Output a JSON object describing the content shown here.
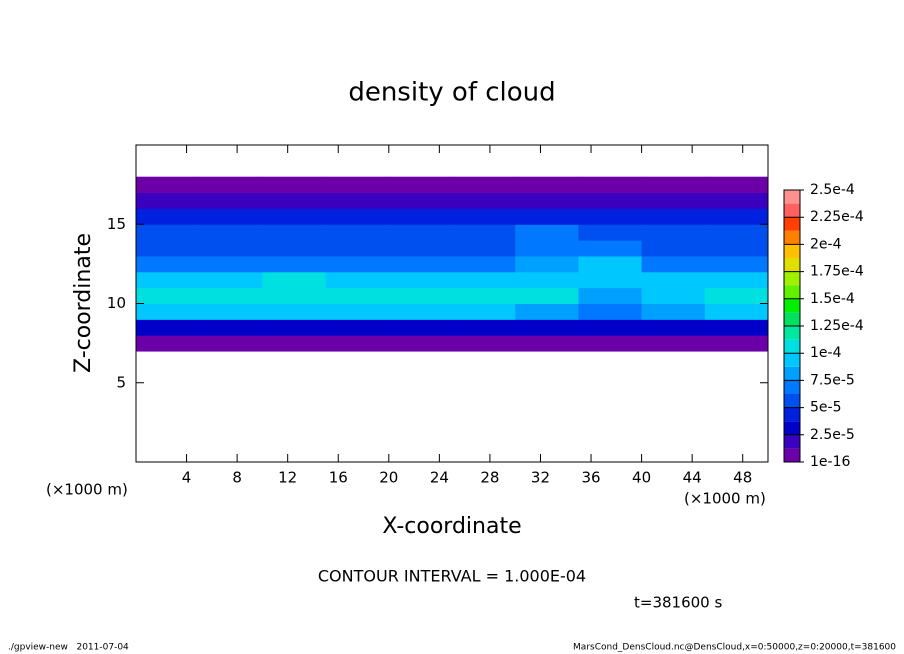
{
  "chart_data": {
    "type": "heatmap",
    "title": "density of cloud",
    "x_label": "X-coordinate",
    "y_label": "Z-coordinate",
    "x_unit_label": "(×1000 m)",
    "y_unit_label": "(×1000 m)",
    "annotation": "CONTOUR INTERVAL = 1.000E-04",
    "time_label": "t=381600 s",
    "footer_left": "./gpview-new   2011-07-04",
    "footer_right": "MarsCond_DensCloud.nc@DensCloud,x=0:50000,z=0:20000,t=381600",
    "xlim": [
      0,
      50
    ],
    "xticks": [
      4,
      8,
      12,
      16,
      20,
      24,
      28,
      32,
      36,
      40,
      44,
      48
    ],
    "ylim": [
      0,
      20
    ],
    "yticks": [
      5,
      10,
      15
    ],
    "x": [
      2.5,
      7.5,
      12.5,
      17.5,
      22.5,
      27.5,
      32.5,
      37.5,
      42.5,
      47.5
    ],
    "z": [
      7.5,
      8.5,
      9.5,
      10.5,
      11.5,
      12.5,
      13.5,
      14.5,
      15.5,
      16.5,
      17.5
    ],
    "values": [
      [
        3e-06,
        3e-06,
        3e-06,
        3e-06,
        3e-06,
        3e-06,
        3e-06,
        3e-06,
        3e-06,
        3e-06
      ],
      [
        3e-05,
        3e-05,
        3e-05,
        3e-05,
        3e-05,
        3e-05,
        3e-05,
        3e-05,
        3e-05,
        3e-05
      ],
      [
        9e-05,
        9e-05,
        9.5e-05,
        9e-05,
        9e-05,
        9e-05,
        8e-05,
        7e-05,
        8e-05,
        9e-05
      ],
      [
        0.00011,
        0.00011,
        0.000112,
        0.00011,
        0.00011,
        0.00011,
        0.000105,
        8e-05,
        0.0001,
        0.000105
      ],
      [
        0.0001,
        0.0001,
        0.000105,
        0.0001,
        0.0001,
        9.5e-05,
        9e-05,
        0.0001,
        9e-05,
        9e-05
      ],
      [
        7e-05,
        7e-05,
        7e-05,
        6.5e-05,
        6.5e-05,
        6.5e-05,
        8e-05,
        9e-05,
        7e-05,
        7e-05
      ],
      [
        6e-05,
        6e-05,
        6e-05,
        6e-05,
        6e-05,
        6e-05,
        7.5e-05,
        7e-05,
        6e-05,
        6e-05
      ],
      [
        6e-05,
        6e-05,
        6e-05,
        5.5e-05,
        5.5e-05,
        6e-05,
        6.5e-05,
        6e-05,
        6e-05,
        6e-05
      ],
      [
        5e-05,
        5e-05,
        5e-05,
        5e-05,
        5e-05,
        5e-05,
        5e-05,
        5e-05,
        5e-05,
        5e-05
      ],
      [
        1.5e-05,
        1.5e-05,
        1.5e-05,
        1.5e-05,
        1.5e-05,
        1.5e-05,
        1.5e-05,
        1.5e-05,
        1.5e-05,
        1.5e-05
      ],
      [
        1e-06,
        1e-06,
        1e-06,
        1e-06,
        1e-06,
        1e-06,
        1e-06,
        1e-06,
        1e-06,
        1e-06
      ]
    ],
    "colorbar": {
      "levels": [
        {
          "value": 1e-16,
          "label": "1e-16"
        },
        {
          "value": 2.5e-05,
          "label": "2.5e-5"
        },
        {
          "value": 5e-05,
          "label": "5e-5"
        },
        {
          "value": 7.5e-05,
          "label": "7.5e-5"
        },
        {
          "value": 0.0001,
          "label": "1e-4"
        },
        {
          "value": 0.000125,
          "label": "1.25e-4"
        },
        {
          "value": 0.00015,
          "label": "1.5e-4"
        },
        {
          "value": 0.000175,
          "label": "1.75e-4"
        },
        {
          "value": 0.0002,
          "label": "2e-4"
        },
        {
          "value": 0.000225,
          "label": "2.25e-4"
        },
        {
          "value": 0.00025,
          "label": "2.5e-4"
        }
      ],
      "colors": [
        "#6b00a8",
        "#3a00c0",
        "#0000c8",
        "#0020e0",
        "#0050f0",
        "#0078ff",
        "#00a0ff",
        "#00c8ff",
        "#00e0e0",
        "#00e8a0",
        "#00e060",
        "#00f000",
        "#60f000",
        "#a0f000",
        "#e0e000",
        "#ffc000",
        "#ff8000",
        "#ff4000",
        "#ff6060",
        "#ff9090"
      ]
    }
  }
}
